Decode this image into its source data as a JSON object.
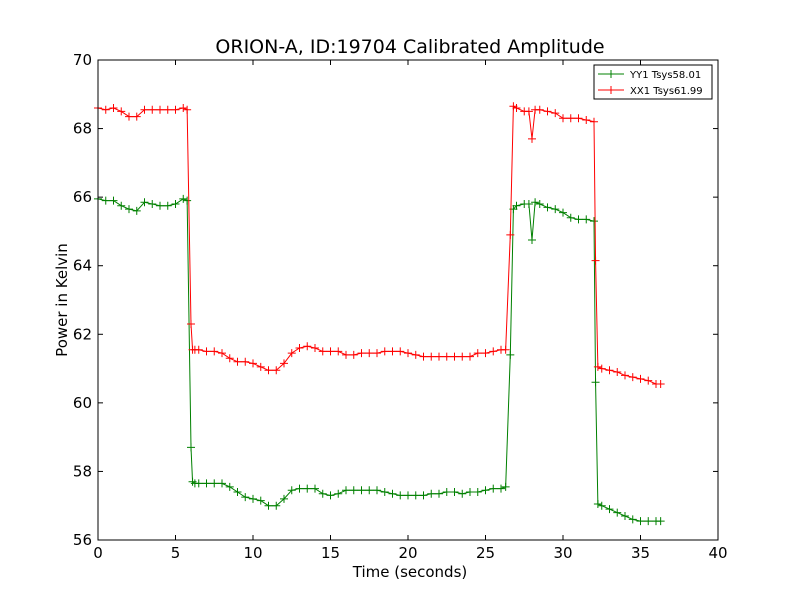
{
  "chart_data": {
    "type": "line",
    "title": "ORION-A, ID:19704 Calibrated Amplitude",
    "xlabel": "Time (seconds)",
    "ylabel": "Power in Kelvin",
    "xlim": [
      0,
      40
    ],
    "ylim": [
      56,
      70
    ],
    "xticks": [
      0,
      5,
      10,
      15,
      20,
      25,
      30,
      35,
      40
    ],
    "yticks": [
      56,
      58,
      60,
      62,
      64,
      66,
      68,
      70
    ],
    "grid": false,
    "legend_position": "top-right",
    "marker": "+",
    "series": [
      {
        "name": "YY1 Tsys58.01",
        "color": "#008000",
        "x": [
          0,
          0.5,
          1,
          1.5,
          2,
          2.5,
          3,
          3.5,
          4,
          4.5,
          5,
          5.5,
          5.75,
          6,
          6.1,
          6.25,
          6.5,
          7,
          7.5,
          8,
          8.5,
          9,
          9.5,
          10,
          10.5,
          11,
          11.5,
          12,
          12.5,
          13,
          13.5,
          14,
          14.5,
          15,
          15.5,
          16,
          16.5,
          17,
          17.5,
          18,
          18.5,
          19,
          19.5,
          20,
          20.5,
          21,
          21.5,
          22,
          22.5,
          23,
          23.5,
          24,
          24.5,
          25,
          25.5,
          26,
          26.3,
          26.6,
          26.8,
          27,
          27.5,
          27.8,
          28,
          28.2,
          28.5,
          29,
          29.5,
          30,
          30.5,
          31,
          31.5,
          32,
          32.1,
          32.25,
          32.5,
          33,
          33.5,
          34,
          34.5,
          35,
          35.5,
          36,
          36.3
        ],
        "values": [
          65.95,
          65.9,
          65.9,
          65.75,
          65.65,
          65.6,
          65.85,
          65.8,
          65.75,
          65.75,
          65.8,
          65.95,
          65.9,
          58.7,
          57.7,
          57.65,
          57.65,
          57.65,
          57.65,
          57.65,
          57.55,
          57.4,
          57.25,
          57.2,
          57.15,
          57.0,
          57.0,
          57.2,
          57.45,
          57.5,
          57.5,
          57.5,
          57.35,
          57.3,
          57.35,
          57.45,
          57.45,
          57.45,
          57.45,
          57.45,
          57.4,
          57.35,
          57.3,
          57.3,
          57.3,
          57.3,
          57.35,
          57.35,
          57.4,
          57.4,
          57.35,
          57.4,
          57.4,
          57.45,
          57.5,
          57.5,
          57.55,
          61.4,
          65.65,
          65.75,
          65.8,
          65.8,
          64.75,
          65.85,
          65.8,
          65.7,
          65.65,
          65.55,
          65.4,
          65.35,
          65.35,
          65.3,
          60.6,
          57.05,
          57.0,
          56.9,
          56.8,
          56.7,
          56.6,
          56.55,
          56.55,
          56.55,
          56.55
        ]
      },
      {
        "name": "XX1 Tsys61.99",
        "color": "#ff0000",
        "x": [
          0,
          0.5,
          1,
          1.5,
          2,
          2.5,
          3,
          3.5,
          4,
          4.5,
          5,
          5.5,
          5.75,
          6,
          6.1,
          6.25,
          6.5,
          7,
          7.5,
          8,
          8.5,
          9,
          9.5,
          10,
          10.5,
          11,
          11.5,
          12,
          12.5,
          13,
          13.5,
          14,
          14.5,
          15,
          15.5,
          16,
          16.5,
          17,
          17.5,
          18,
          18.5,
          19,
          19.5,
          20,
          20.5,
          21,
          21.5,
          22,
          22.5,
          23,
          23.5,
          24,
          24.5,
          25,
          25.5,
          26,
          26.3,
          26.6,
          26.8,
          27,
          27.5,
          27.8,
          28,
          28.2,
          28.5,
          29,
          29.5,
          30,
          30.5,
          31,
          31.5,
          32,
          32.1,
          32.25,
          32.5,
          33,
          33.5,
          34,
          34.5,
          35,
          35.5,
          36,
          36.3
        ],
        "values": [
          68.6,
          68.55,
          68.6,
          68.5,
          68.35,
          68.35,
          68.55,
          68.55,
          68.55,
          68.55,
          68.55,
          68.6,
          68.55,
          62.3,
          61.55,
          61.55,
          61.55,
          61.5,
          61.5,
          61.45,
          61.3,
          61.2,
          61.2,
          61.15,
          61.05,
          60.95,
          60.95,
          61.15,
          61.45,
          61.6,
          61.65,
          61.6,
          61.5,
          61.5,
          61.5,
          61.4,
          61.4,
          61.45,
          61.45,
          61.45,
          61.5,
          61.5,
          61.5,
          61.45,
          61.4,
          61.35,
          61.35,
          61.35,
          61.35,
          61.35,
          61.35,
          61.35,
          61.45,
          61.45,
          61.5,
          61.55,
          61.55,
          64.9,
          68.65,
          68.6,
          68.5,
          68.5,
          67.7,
          68.55,
          68.55,
          68.5,
          68.45,
          68.3,
          68.3,
          68.3,
          68.25,
          68.2,
          64.15,
          61.05,
          61.0,
          60.95,
          60.9,
          60.8,
          60.75,
          60.7,
          60.65,
          60.55,
          60.55
        ]
      }
    ]
  }
}
